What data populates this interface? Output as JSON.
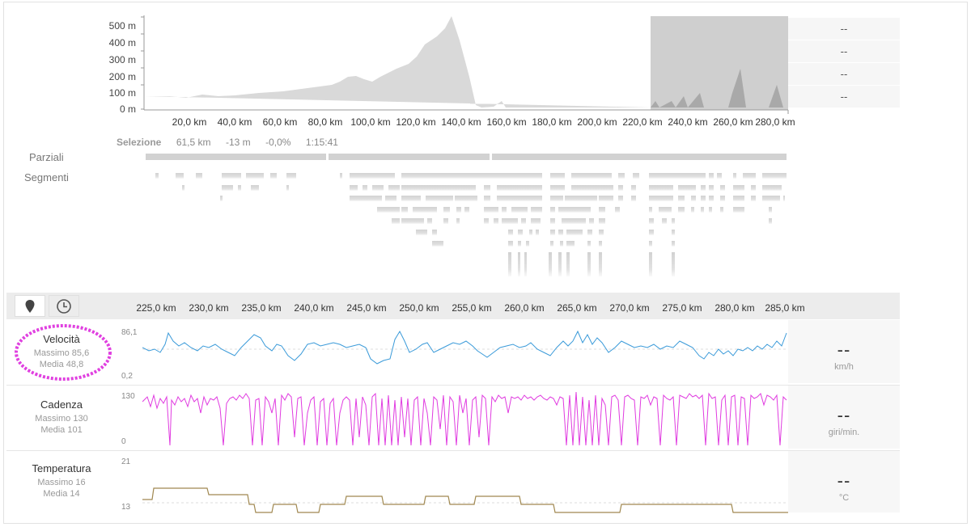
{
  "elevation": {
    "y_ticks": [
      "500 m",
      "400 m",
      "300 m",
      "200 m",
      "100 m",
      "0 m"
    ],
    "x_ticks": [
      "20,0 km",
      "40,0 km",
      "60,0 km",
      "80,0 km",
      "100,0 km",
      "120,0 km",
      "140,0 km",
      "160,0 km",
      "180,0 km",
      "200,0 km",
      "220,0 km",
      "240,0 km",
      "260,0 km",
      "280,0 km"
    ],
    "side_values": [
      "--",
      "--",
      "--",
      "--"
    ],
    "selection_range_km": [
      221,
      282
    ]
  },
  "selection": {
    "label": "Selezione",
    "distance": "61,5 km",
    "elevation": "-13 m",
    "grade": "-0,0%",
    "time": "1:15:41"
  },
  "rows": {
    "partials": "Parziali",
    "segments": "Segmenti"
  },
  "toolbar": {
    "map_icon": "map-pin-icon",
    "time_icon": "clock-icon"
  },
  "detail_axis": {
    "x_ticks": [
      "225,0 km",
      "230,0 km",
      "235,0 km",
      "240,0 km",
      "245,0 km",
      "250,0 km",
      "255,0 km",
      "260,0 km",
      "265,0 km",
      "270,0 km",
      "275,0 km",
      "280,0 km",
      "285,0 km"
    ]
  },
  "metrics": [
    {
      "title": "Velocità",
      "max": "Massimo 85,6",
      "avg": "Media 48,8",
      "ymax": "86,1",
      "ymin": "0,2",
      "value": "--",
      "unit": "km/h",
      "color": "#3a9ad9"
    },
    {
      "title": "Cadenza",
      "max": "Massimo 130",
      "avg": "Media 101",
      "ymax": "130",
      "ymin": "0",
      "value": "--",
      "unit": "giri/min.",
      "color": "#e03be0"
    },
    {
      "title": "Temperatura",
      "max": "Massimo 16",
      "avg": "Media 14",
      "ymax": "21",
      "ymin": "13",
      "value": "--",
      "unit": "°C",
      "color": "#a08850"
    }
  ],
  "highlight_color": "#e040e0"
}
